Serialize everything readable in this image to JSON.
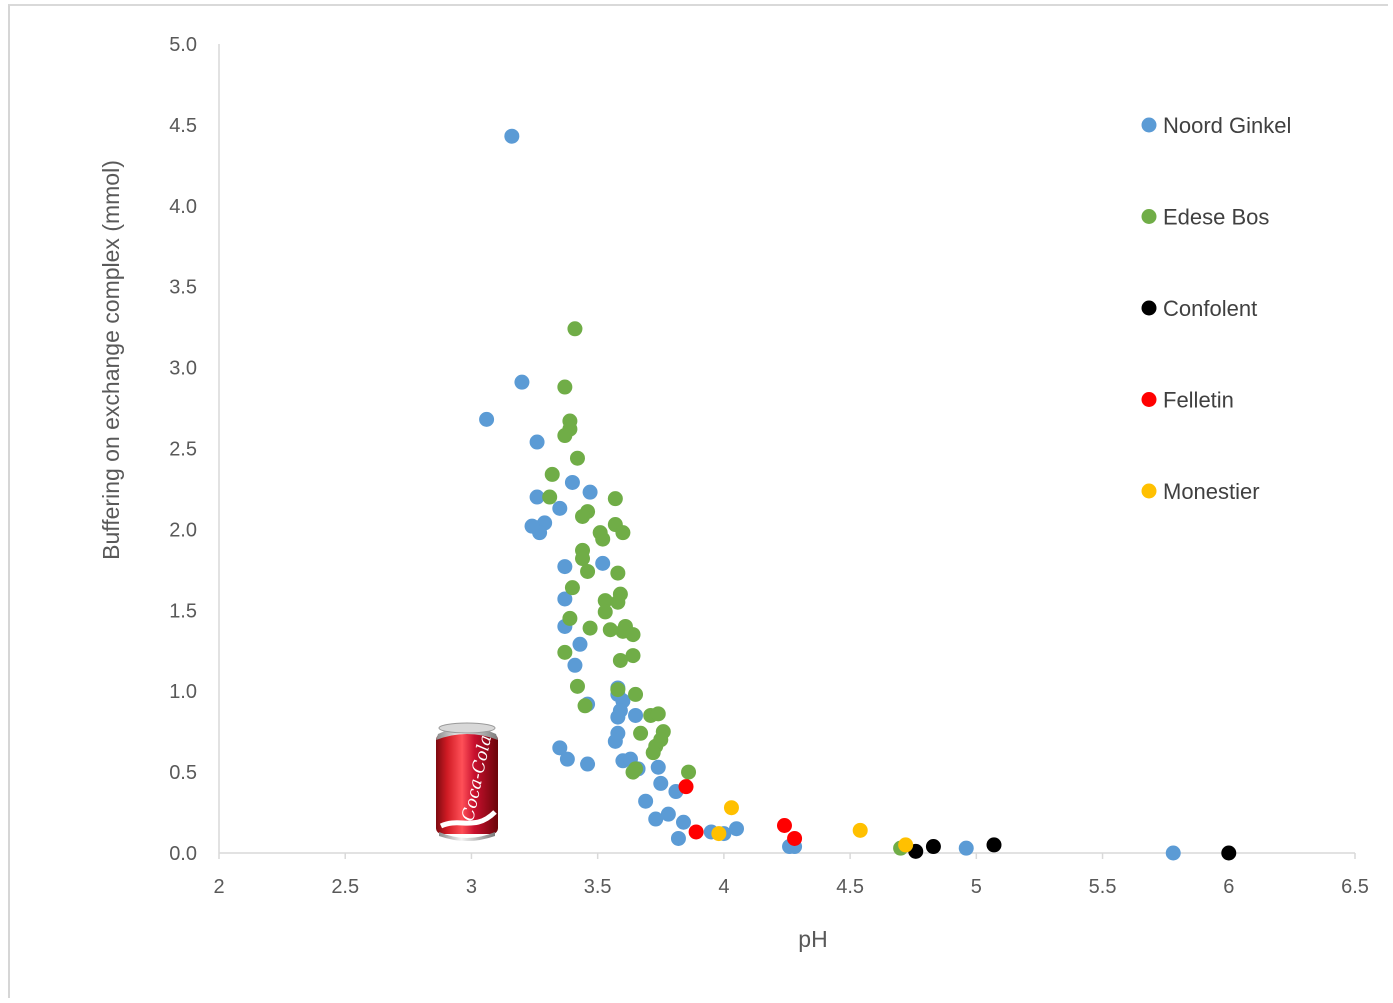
{
  "chart_data": {
    "type": "scatter",
    "title": "",
    "xlabel": "pH",
    "ylabel": "Buffering on exchange complex (mmol)",
    "xlim": [
      2,
      6.5
    ],
    "ylim": [
      0,
      5
    ],
    "xticks": [
      "2",
      "2.5",
      "3",
      "3.5",
      "4",
      "4.5",
      "5",
      "5.5",
      "6",
      "6.5"
    ],
    "yticks": [
      "0.0",
      "0.5",
      "1.0",
      "1.5",
      "2.0",
      "2.5",
      "3.0",
      "3.5",
      "4.0",
      "4.5",
      "5.0"
    ],
    "grid": false,
    "legend_position": "right",
    "series": [
      {
        "name": "Noord Ginkel",
        "color": "#5b9bd5",
        "points": [
          [
            3.16,
            4.43
          ],
          [
            3.2,
            2.91
          ],
          [
            3.06,
            2.68
          ],
          [
            3.26,
            2.54
          ],
          [
            3.26,
            2.2
          ],
          [
            3.4,
            2.29
          ],
          [
            3.47,
            2.23
          ],
          [
            3.35,
            2.13
          ],
          [
            3.26,
            2.01
          ],
          [
            3.29,
            2.04
          ],
          [
            3.27,
            1.98
          ],
          [
            3.24,
            2.02
          ],
          [
            3.52,
            1.79
          ],
          [
            3.37,
            1.77
          ],
          [
            3.37,
            1.57
          ],
          [
            3.37,
            1.4
          ],
          [
            3.43,
            1.29
          ],
          [
            3.41,
            1.16
          ],
          [
            3.58,
            1.02
          ],
          [
            3.58,
            0.98
          ],
          [
            3.6,
            0.94
          ],
          [
            3.46,
            0.92
          ],
          [
            3.59,
            0.88
          ],
          [
            3.58,
            0.84
          ],
          [
            3.65,
            0.85
          ],
          [
            3.58,
            0.74
          ],
          [
            3.57,
            0.69
          ],
          [
            3.35,
            0.65
          ],
          [
            3.38,
            0.58
          ],
          [
            3.46,
            0.55
          ],
          [
            3.6,
            0.57
          ],
          [
            3.63,
            0.58
          ],
          [
            3.66,
            0.52
          ],
          [
            3.74,
            0.53
          ],
          [
            3.75,
            0.43
          ],
          [
            3.81,
            0.38
          ],
          [
            3.69,
            0.32
          ],
          [
            3.78,
            0.24
          ],
          [
            3.73,
            0.21
          ],
          [
            3.84,
            0.19
          ],
          [
            3.95,
            0.13
          ],
          [
            4.05,
            0.15
          ],
          [
            4.0,
            0.12
          ],
          [
            3.82,
            0.09
          ],
          [
            4.26,
            0.04
          ],
          [
            4.28,
            0.04
          ],
          [
            4.96,
            0.03
          ],
          [
            5.78,
            0.0
          ]
        ]
      },
      {
        "name": "Edese Bos",
        "color": "#70ad47",
        "points": [
          [
            3.41,
            3.24
          ],
          [
            3.37,
            2.88
          ],
          [
            3.39,
            2.67
          ],
          [
            3.39,
            2.62
          ],
          [
            3.37,
            2.58
          ],
          [
            3.42,
            2.44
          ],
          [
            3.32,
            2.34
          ],
          [
            3.31,
            2.2
          ],
          [
            3.57,
            2.19
          ],
          [
            3.46,
            2.11
          ],
          [
            3.44,
            2.08
          ],
          [
            3.57,
            2.03
          ],
          [
            3.6,
            1.98
          ],
          [
            3.51,
            1.98
          ],
          [
            3.52,
            1.94
          ],
          [
            3.44,
            1.87
          ],
          [
            3.44,
            1.82
          ],
          [
            3.46,
            1.74
          ],
          [
            3.58,
            1.73
          ],
          [
            3.4,
            1.64
          ],
          [
            3.59,
            1.6
          ],
          [
            3.53,
            1.56
          ],
          [
            3.58,
            1.55
          ],
          [
            3.53,
            1.49
          ],
          [
            3.39,
            1.45
          ],
          [
            3.61,
            1.4
          ],
          [
            3.47,
            1.39
          ],
          [
            3.55,
            1.38
          ],
          [
            3.6,
            1.37
          ],
          [
            3.64,
            1.35
          ],
          [
            3.37,
            1.24
          ],
          [
            3.64,
            1.22
          ],
          [
            3.59,
            1.19
          ],
          [
            3.42,
            1.03
          ],
          [
            3.58,
            1.01
          ],
          [
            3.65,
            0.98
          ],
          [
            3.45,
            0.91
          ],
          [
            3.71,
            0.85
          ],
          [
            3.74,
            0.86
          ],
          [
            3.76,
            0.75
          ],
          [
            3.67,
            0.74
          ],
          [
            3.75,
            0.7
          ],
          [
            3.73,
            0.66
          ],
          [
            3.72,
            0.62
          ],
          [
            3.65,
            0.52
          ],
          [
            3.64,
            0.5
          ],
          [
            3.86,
            0.5
          ],
          [
            4.7,
            0.03
          ]
        ]
      },
      {
        "name": "Confolent",
        "color": "#000000",
        "points": [
          [
            4.76,
            0.01
          ],
          [
            4.83,
            0.04
          ],
          [
            5.07,
            0.05
          ],
          [
            6.0,
            0.0
          ]
        ]
      },
      {
        "name": "Felletin",
        "color": "#ff0000",
        "points": [
          [
            3.85,
            0.41
          ],
          [
            3.89,
            0.13
          ],
          [
            4.24,
            0.17
          ],
          [
            4.28,
            0.09
          ]
        ]
      },
      {
        "name": "Monestier",
        "color": "#ffc000",
        "points": [
          [
            4.03,
            0.28
          ],
          [
            3.98,
            0.12
          ],
          [
            4.54,
            0.14
          ],
          [
            4.72,
            0.05
          ]
        ]
      }
    ]
  },
  "image": {
    "icon": "soda-can-icon",
    "brand_text": "Coca-Cola",
    "can_color": "#c8102e"
  }
}
